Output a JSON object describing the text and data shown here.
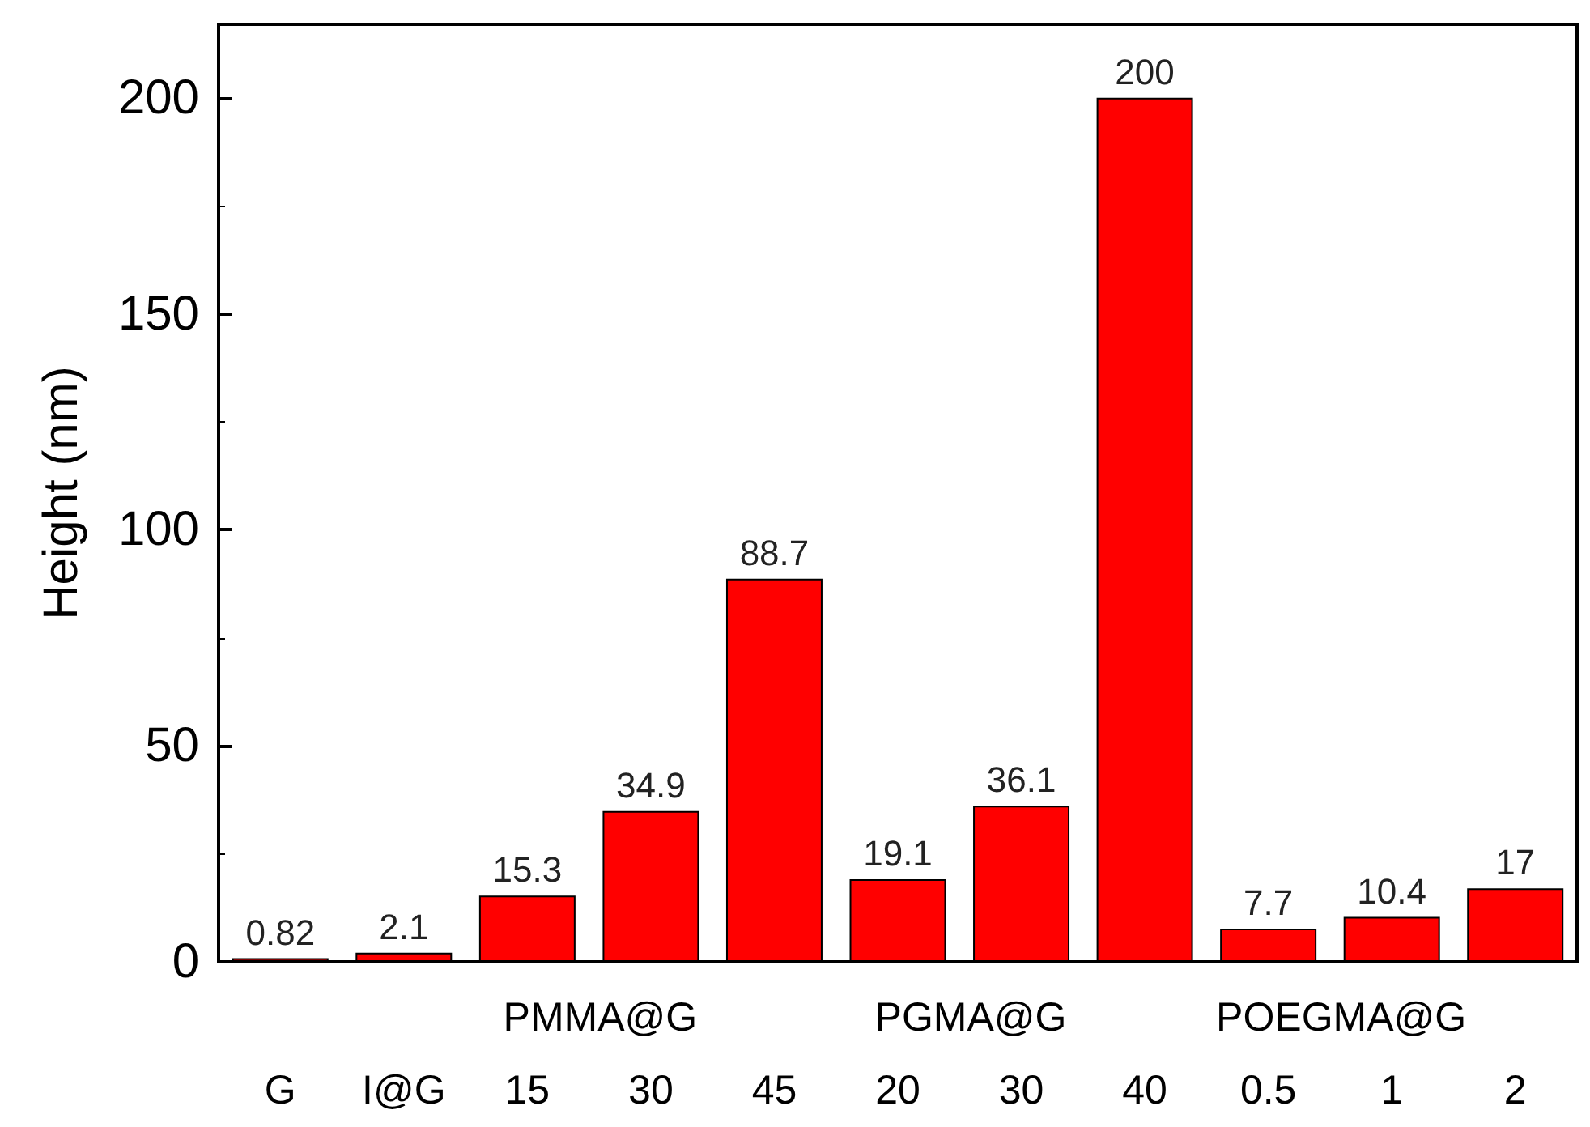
{
  "chart_data": {
    "type": "bar",
    "ylabel": "Height (nm)",
    "categories": [
      "G",
      "I@G",
      "PMMA@G\n15",
      "30",
      "45",
      "PGMA@G\n20",
      "30",
      "40",
      "POEGMA@G\n0.5",
      "1",
      "2"
    ],
    "values": [
      0.82,
      2.1,
      15.3,
      34.9,
      88.7,
      19.1,
      36.1,
      200,
      7.7,
      10.4,
      17
    ],
    "color": "#ff0000",
    "ylim": [
      0,
      217
    ],
    "yticks": [
      0,
      50,
      100,
      150,
      200
    ],
    "grid": false,
    "data_labels": true
  }
}
